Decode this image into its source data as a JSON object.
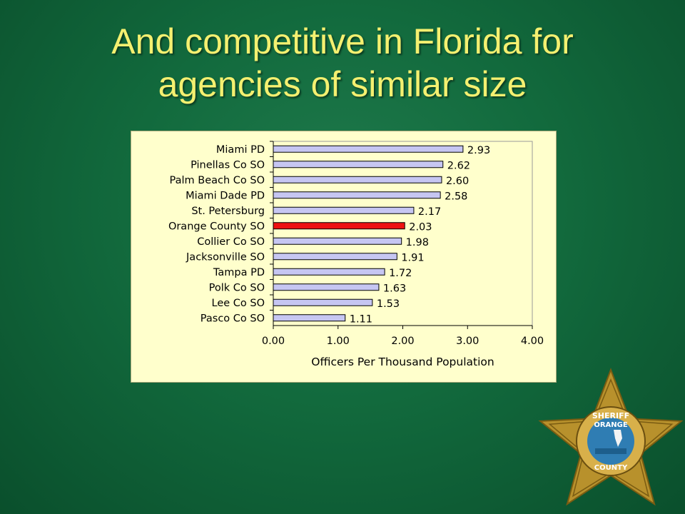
{
  "slide": {
    "title_line1": "And competitive in Florida for",
    "title_line2": "agencies of similar size"
  },
  "chart_data": {
    "type": "bar",
    "orientation": "horizontal",
    "categories": [
      "Miami PD",
      "Pinellas Co SO",
      "Palm Beach Co SO",
      "Miami Dade PD",
      "St. Petersburg",
      "Orange County SO",
      "Collier Co SO",
      "Jacksonville SO",
      "Tampa PD",
      "Polk Co SO",
      "Lee Co SO",
      "Pasco Co SO"
    ],
    "values": [
      2.93,
      2.62,
      2.6,
      2.58,
      2.17,
      2.03,
      1.98,
      1.91,
      1.72,
      1.63,
      1.53,
      1.11
    ],
    "value_labels": [
      "2.93",
      "2.62",
      "2.60",
      "2.58",
      "2.17",
      "2.03",
      "1.98",
      "1.91",
      "1.72",
      "1.63",
      "1.53",
      "1.11"
    ],
    "xlabel": "Officers Per Thousand Population",
    "xlim": [
      0,
      4
    ],
    "xticks": [
      "0.00",
      "1.00",
      "2.00",
      "3.00",
      "4.00"
    ],
    "highlight_category": "Orange County SO",
    "colors": {
      "bar": "#c6c6f2",
      "highlight": "#ee1111",
      "bar_border": "#000000",
      "panel_bg": "#ffffcc"
    },
    "grid": false
  },
  "badge": {
    "name": "orange-county-sheriff-star",
    "text_top": "SHERIFF",
    "text_mid": "ORANGE",
    "text_bottom": "COUNTY",
    "colors": {
      "star": "#b8912c",
      "star_dark": "#7a5c12",
      "seal_blue": "#2f7db3"
    }
  }
}
